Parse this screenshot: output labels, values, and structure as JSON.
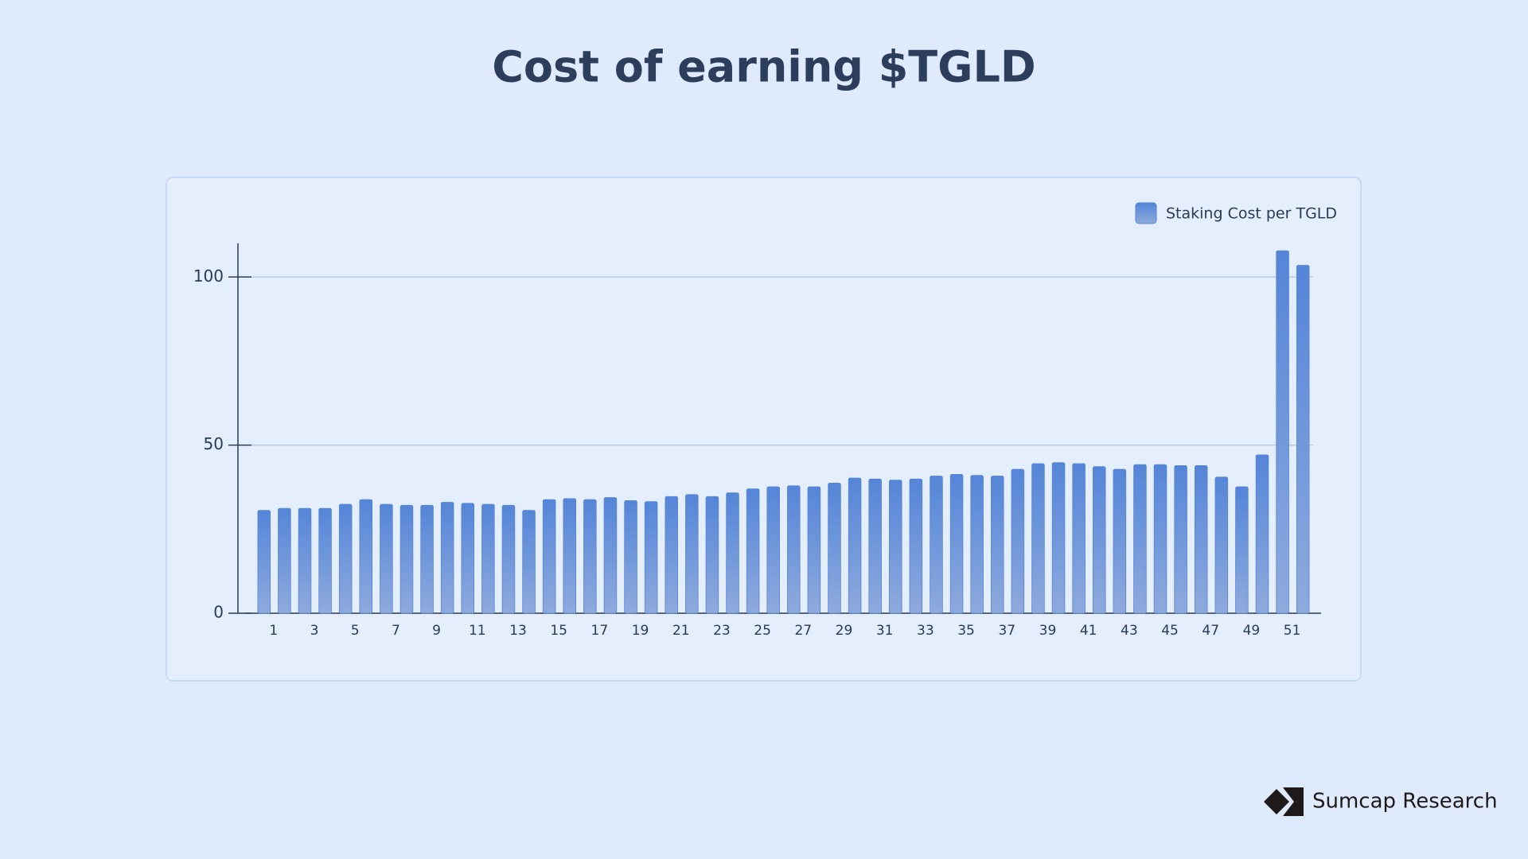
{
  "chart_data": {
    "type": "bar",
    "title": "Cost of earning $TGLD",
    "categories": [
      "1",
      null,
      "3",
      null,
      "5",
      null,
      "7",
      null,
      "9",
      null,
      "11",
      null,
      "13",
      null,
      "15",
      null,
      "17",
      null,
      "19",
      null,
      "21",
      null,
      "23",
      null,
      "25",
      null,
      "27",
      null,
      "29",
      null,
      "31",
      null,
      "33",
      null,
      "35",
      null,
      "37",
      null,
      "39",
      null,
      "41",
      null,
      "43",
      null,
      "45",
      null,
      "47",
      null,
      "49",
      null,
      "51",
      null
    ],
    "series": [
      {
        "name": "Staking Cost per TGLD",
        "color": "#5585d8",
        "values": [
          30.6,
          31.2,
          31.2,
          31.2,
          32.4,
          33.8,
          32.4,
          32.1,
          32.1,
          33,
          32.7,
          32.4,
          32.1,
          30.6,
          33.8,
          34.1,
          33.8,
          34.4,
          33.5,
          33.2,
          34.7,
          35.3,
          34.7,
          35.8,
          37,
          37.6,
          37.9,
          37.6,
          38.7,
          40.2,
          39.9,
          39.6,
          39.9,
          40.8,
          41.3,
          41,
          40.8,
          42.8,
          44.5,
          44.8,
          44.5,
          43.6,
          42.8,
          44.2,
          44.2,
          43.9,
          43.9,
          40.5,
          37.6,
          47.1,
          107.8,
          103.5
        ]
      }
    ],
    "ylim": [
      0,
      110
    ],
    "yticks": [
      0,
      50,
      100
    ],
    "grid": true,
    "legend": "top-right"
  },
  "brand": "Sumcap Research"
}
